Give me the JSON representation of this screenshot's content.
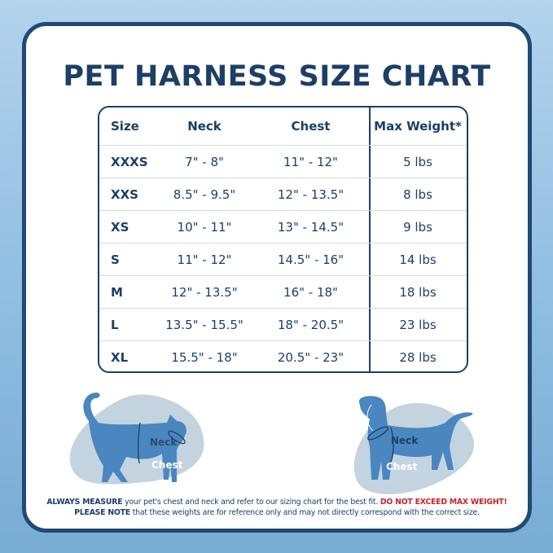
{
  "title": "PET HARNESS SIZE CHART",
  "table": {
    "headers": [
      "Size",
      "Neck",
      "Chest",
      "Max Weight*"
    ],
    "rows": [
      [
        "XXXS",
        "7\" - 8\"",
        "11\" - 12\"",
        "5 lbs"
      ],
      [
        "XXS",
        "8.5\" - 9.5\"",
        "12\" - 13.5\"",
        "8 lbs"
      ],
      [
        "XS",
        "10\" - 11\"",
        "13\" - 14.5\"",
        "9 lbs"
      ],
      [
        "S",
        "11\" - 12\"",
        "14.5\" - 16\"",
        "14 lbs"
      ],
      [
        "M",
        "12\" - 13.5\"",
        "16\" - 18\"",
        "18 lbs"
      ],
      [
        "L",
        "13.5\" - 15.5\"",
        "18\" - 20.5\"",
        "23 lbs"
      ],
      [
        "XL",
        "15.5\" - 18\"",
        "20.5\" - 23\"",
        "28 lbs"
      ]
    ]
  },
  "illustrations": {
    "cat": {
      "neck_label": "Neck",
      "chest_label": "Chest"
    },
    "dog": {
      "neck_label": "Neck",
      "chest_label": "Chest"
    }
  },
  "notes": {
    "line1_bold": "ALWAYS MEASURE",
    "line1_text": " your pet's chest and neck and refer  to our sizing chart for the best fit. ",
    "line1_warning": "DO NOT EXCEED MAX WEIGHT!",
    "line2_bold": "PLEASE NOTE",
    "line2_text": " that these weights are for reference only and may not directly correspond with the correct size."
  },
  "colors": {
    "navy": "#1d3f66",
    "pet_blue": "#4a86bf",
    "blob": "#c3d3e0",
    "warning": "#c4262e"
  }
}
